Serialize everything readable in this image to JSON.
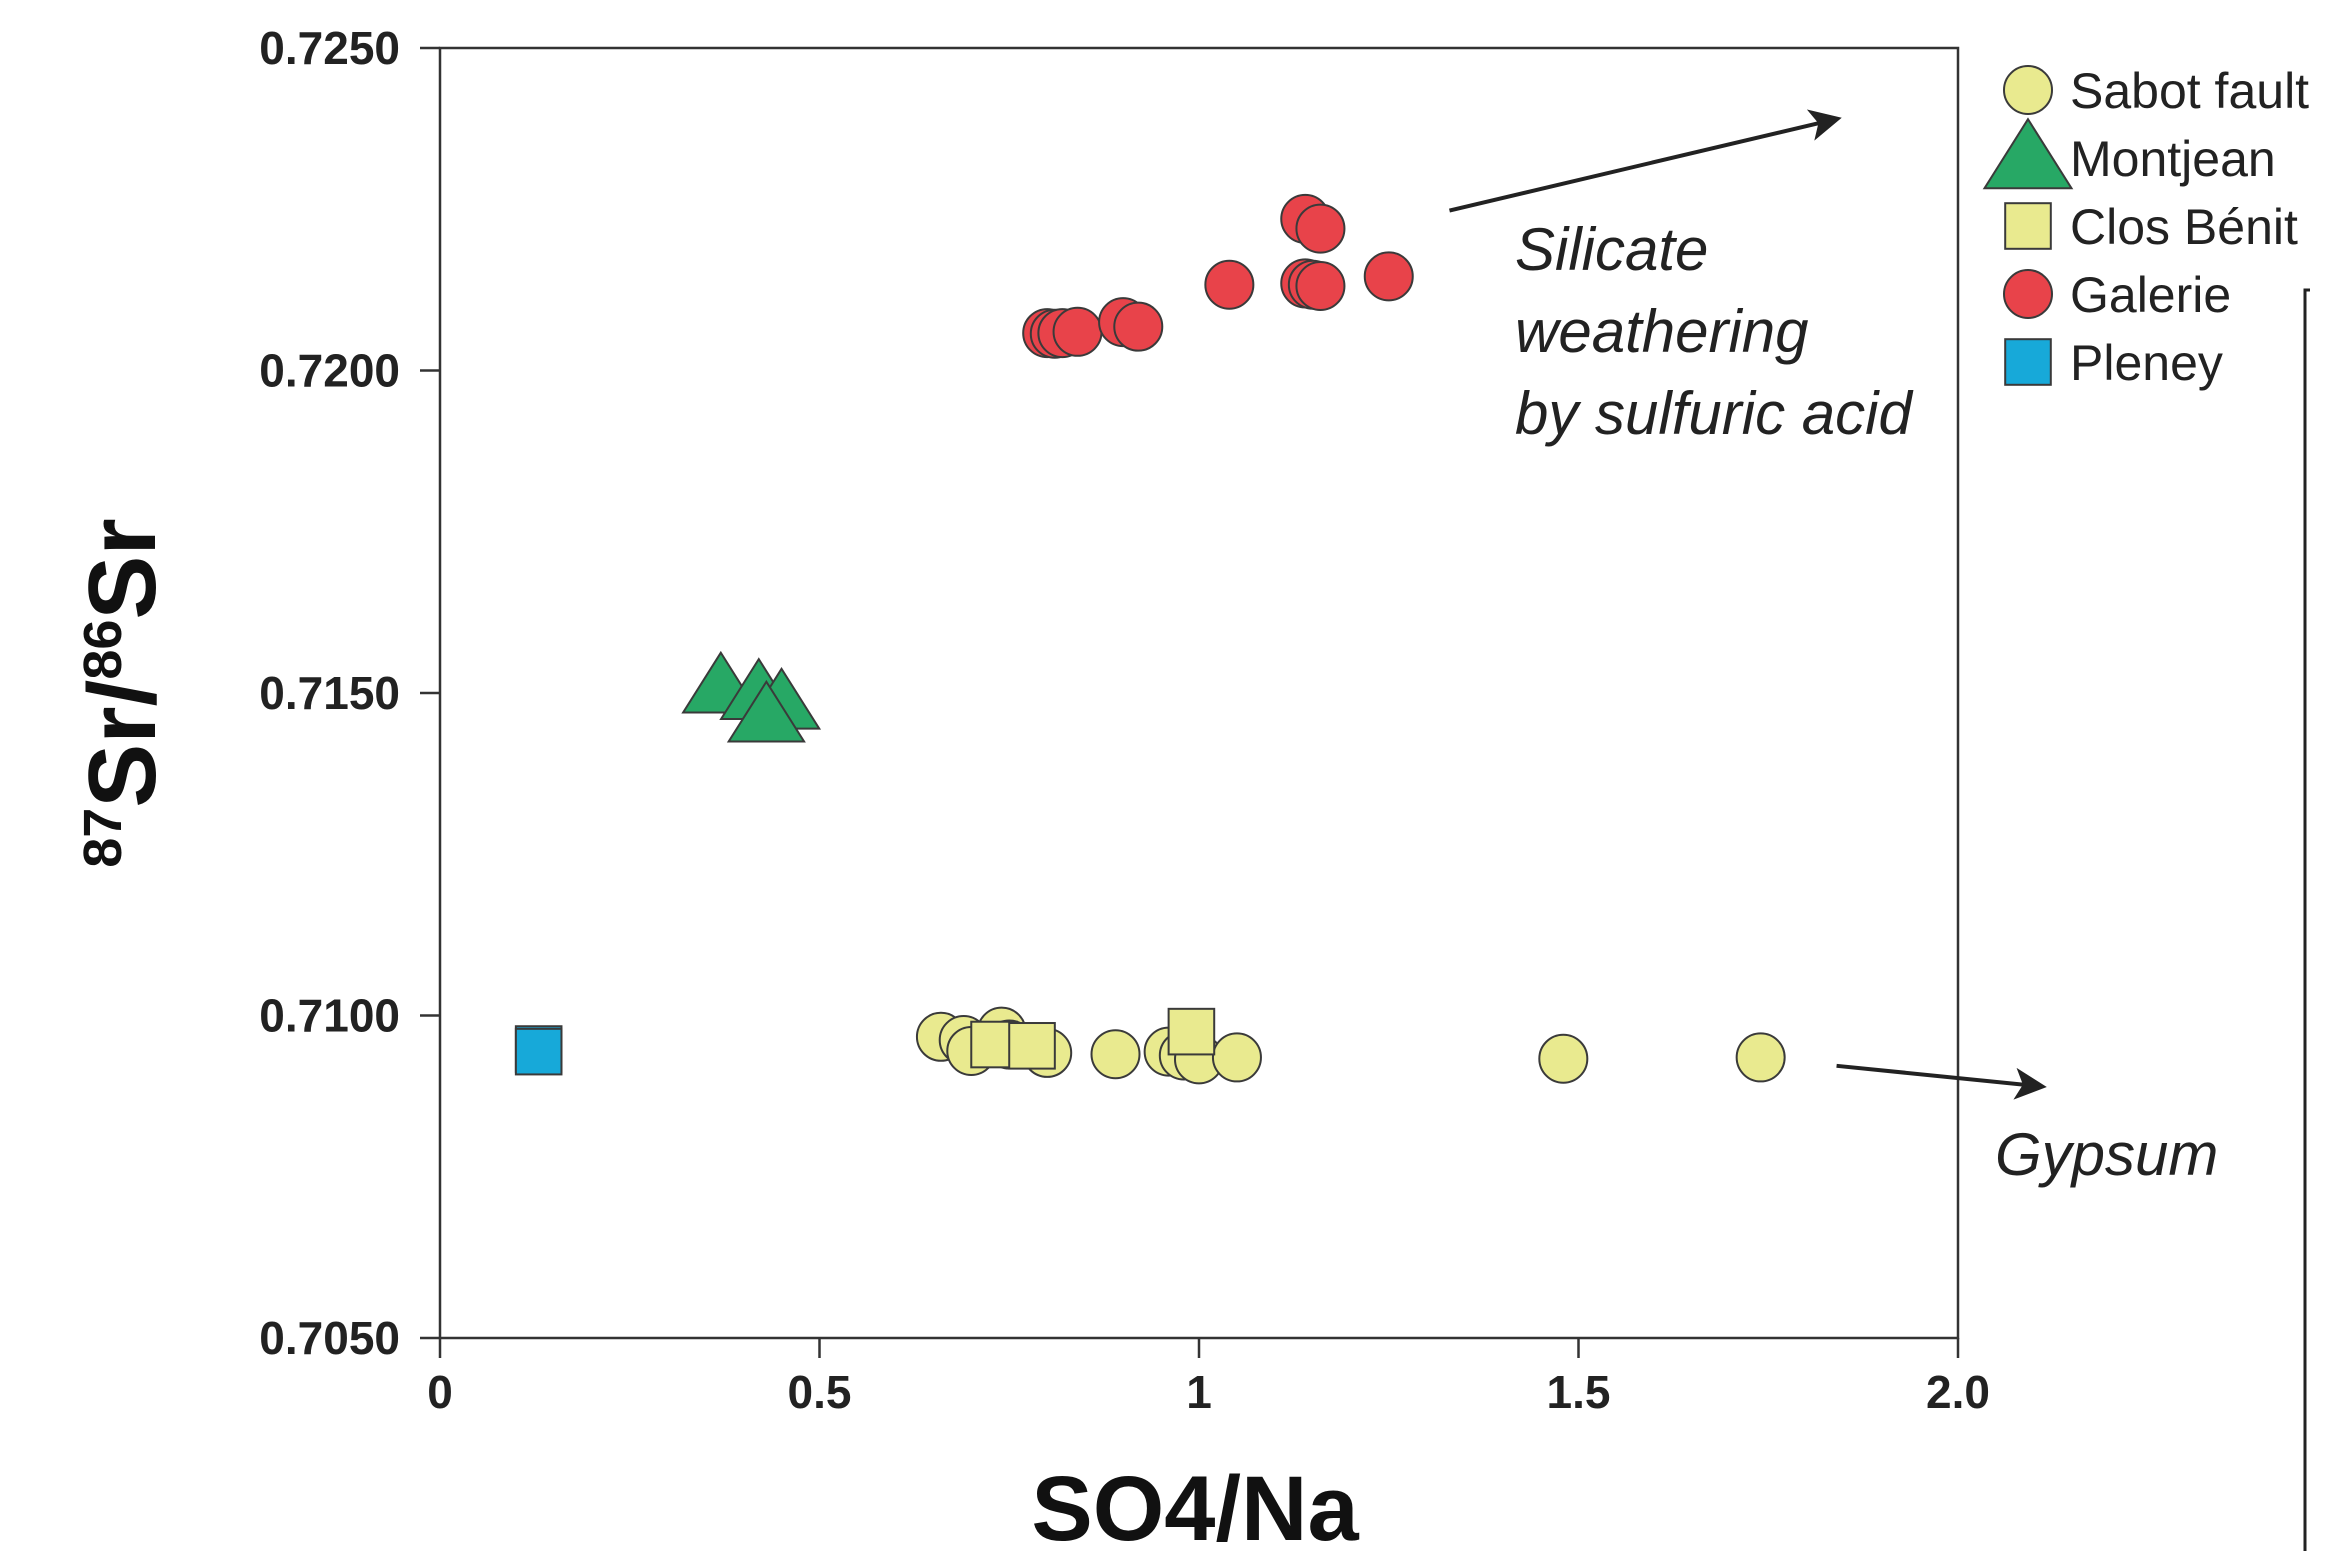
{
  "chart_data": {
    "type": "scatter",
    "title": "",
    "xlabel": "SO4/Na",
    "ylabel": {
      "sup1": "87",
      "main1": "Sr/",
      "sup2": "86",
      "main2": "Sr"
    },
    "xlim": [
      0,
      2.0
    ],
    "ylim": [
      0.705,
      0.725
    ],
    "x_ticks": [
      {
        "value": 0,
        "label": "0"
      },
      {
        "value": 0.5,
        "label": "0.5"
      },
      {
        "value": 1.0,
        "label": "1"
      },
      {
        "value": 1.5,
        "label": "1.5"
      },
      {
        "value": 2.0,
        "label": "2.0"
      }
    ],
    "y_ticks": [
      {
        "value": 0.705,
        "label": "0.7050"
      },
      {
        "value": 0.71,
        "label": "0.7100"
      },
      {
        "value": 0.715,
        "label": "0.7150"
      },
      {
        "value": 0.72,
        "label": "0.7200"
      },
      {
        "value": 0.725,
        "label": "0.7250"
      }
    ],
    "grid": false,
    "legend_position": "outside-top-right",
    "series": [
      {
        "name": "Sabot fault",
        "marker": "circle",
        "color": "#e9ea8f",
        "points": [
          {
            "x": 0.66,
            "y": 0.70967
          },
          {
            "x": 0.69,
            "y": 0.70962
          },
          {
            "x": 0.7,
            "y": 0.70945
          },
          {
            "x": 0.74,
            "y": 0.70975
          },
          {
            "x": 0.75,
            "y": 0.70955
          },
          {
            "x": 0.8,
            "y": 0.70942
          },
          {
            "x": 0.89,
            "y": 0.7094
          },
          {
            "x": 0.96,
            "y": 0.70944
          },
          {
            "x": 0.98,
            "y": 0.70938
          },
          {
            "x": 1.0,
            "y": 0.70932
          },
          {
            "x": 1.05,
            "y": 0.70935
          },
          {
            "x": 1.48,
            "y": 0.70933
          },
          {
            "x": 1.74,
            "y": 0.70935
          }
        ]
      },
      {
        "name": "Montjean",
        "marker": "triangle",
        "color": "#27a865",
        "points": [
          {
            "x": 0.37,
            "y": 0.71505
          },
          {
            "x": 0.42,
            "y": 0.71495
          },
          {
            "x": 0.45,
            "y": 0.7148
          },
          {
            "x": 0.43,
            "y": 0.7146
          }
        ]
      },
      {
        "name": "Clos Bénit",
        "marker": "square",
        "color": "#e9ea8f",
        "points": [
          {
            "x": 0.73,
            "y": 0.70955
          },
          {
            "x": 0.78,
            "y": 0.70953
          },
          {
            "x": 0.99,
            "y": 0.70975
          }
        ]
      },
      {
        "name": "Galerie",
        "marker": "circle",
        "color": "#e8434a",
        "points": [
          {
            "x": 0.8,
            "y": 0.72058
          },
          {
            "x": 0.81,
            "y": 0.72057
          },
          {
            "x": 0.82,
            "y": 0.72058
          },
          {
            "x": 0.84,
            "y": 0.7206
          },
          {
            "x": 0.9,
            "y": 0.72075
          },
          {
            "x": 0.92,
            "y": 0.72068
          },
          {
            "x": 1.04,
            "y": 0.72133
          },
          {
            "x": 1.14,
            "y": 0.72135
          },
          {
            "x": 1.15,
            "y": 0.72133
          },
          {
            "x": 1.16,
            "y": 0.72131
          },
          {
            "x": 1.14,
            "y": 0.72235
          },
          {
            "x": 1.16,
            "y": 0.7222
          },
          {
            "x": 1.25,
            "y": 0.72146
          }
        ]
      },
      {
        "name": "Pleney",
        "marker": "square",
        "color": "#17a9d9",
        "points": [
          {
            "x": 0.13,
            "y": 0.70948
          },
          {
            "x": 0.13,
            "y": 0.70944
          }
        ]
      }
    ],
    "annotations": [
      {
        "lines": [
          "Silicate",
          "weathering",
          "by sulfuric acid"
        ],
        "arrow": {
          "from": [
            1.33,
            0.72248
          ],
          "to": [
            1.84,
            0.7239
          ]
        }
      },
      {
        "lines": [
          "Gypsum"
        ],
        "arrow": {
          "from": [
            1.84,
            0.70922
          ],
          "to": [
            2.11,
            0.7089
          ]
        }
      }
    ]
  }
}
